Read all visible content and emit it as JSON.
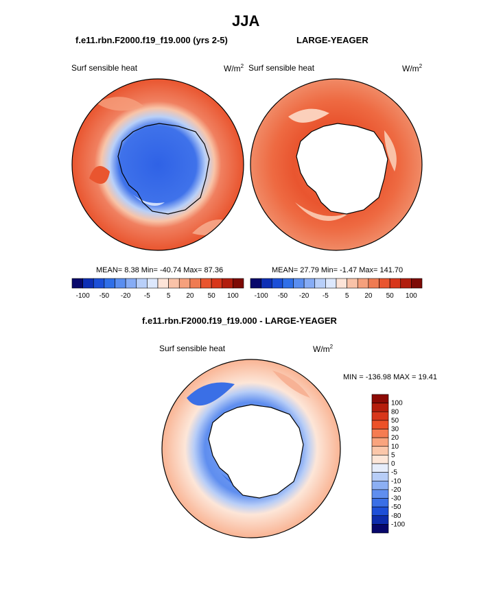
{
  "page": {
    "title": "JJA",
    "left_run": "f.e11.rbn.F2000.f19_f19.000 (yrs 2-5)",
    "right_run": "LARGE-YEAGER",
    "diff_title": "f.e11.rbn.F2000.f19_f19.000 - LARGE-YEAGER"
  },
  "colors": {
    "land": "#ffffff",
    "coast": "#000000"
  },
  "chart_data": [
    {
      "type": "heatmap",
      "projection": "south-polar-stereographic",
      "variable": "Surf sensible heat",
      "units": "W/m",
      "units_exp": "2",
      "stats": {
        "mean_label": "MEAN=",
        "mean": "8.38",
        "min_label": "Min=",
        "min": "-40.74",
        "max_label": "Max=",
        "max": "87.36"
      },
      "colorbar": {
        "orientation": "horizontal",
        "colors": [
          "#08086b",
          "#0d2fb5",
          "#1b4fd8",
          "#2f6fe8",
          "#5a8ef0",
          "#86acf5",
          "#b8cff9",
          "#dde8fd",
          "#fde4d8",
          "#f9c2a8",
          "#f5a07c",
          "#ef7b52",
          "#e9552f",
          "#d8361a",
          "#b11d0d",
          "#7d0a05"
        ],
        "tick_labels": [
          "-100",
          "-50",
          "-20",
          "-5",
          "5",
          "20",
          "50",
          "100"
        ]
      },
      "field_description": "negative values (blues) over the Antarctic continent and sea-ice zone; positive values (oranges/reds) over the open Southern Ocean"
    },
    {
      "type": "heatmap",
      "projection": "south-polar-stereographic",
      "variable": "Surf sensible heat",
      "units": "W/m",
      "units_exp": "2",
      "stats": {
        "mean_label": "MEAN=",
        "mean": "27.79",
        "min_label": "Min=",
        "min": "-1.47",
        "max_label": "Max=",
        "max": "141.70"
      },
      "colorbar": {
        "orientation": "horizontal",
        "colors": [
          "#08086b",
          "#0d2fb5",
          "#1b4fd8",
          "#2f6fe8",
          "#5a8ef0",
          "#86acf5",
          "#b8cff9",
          "#dde8fd",
          "#fde4d8",
          "#f9c2a8",
          "#f5a07c",
          "#ef7b52",
          "#e9552f",
          "#d8361a",
          "#b11d0d",
          "#7d0a05"
        ],
        "tick_labels": [
          "-100",
          "-50",
          "-20",
          "-5",
          "5",
          "20",
          "50",
          "100"
        ]
      },
      "field_description": "continent masked (white); positive values everywhere over ocean, strongest near the ice edge"
    },
    {
      "type": "heatmap",
      "projection": "south-polar-stereographic",
      "variable": "Surf sensible heat",
      "units": "W/m",
      "units_exp": "2",
      "stats": {
        "min_label": "MIN =",
        "min": "-136.98",
        "max_label": "MAX =",
        "max": "19.41"
      },
      "colorbar": {
        "orientation": "vertical",
        "levels": [
          "100",
          "80",
          "50",
          "30",
          "20",
          "10",
          "5",
          "0",
          "-5",
          "-10",
          "-20",
          "-30",
          "-50",
          "-80",
          "-100"
        ],
        "colors": [
          "#8c0a05",
          "#b51d0c",
          "#d8361a",
          "#ec5128",
          "#f57c52",
          "#f9a47e",
          "#fbc7aa",
          "#fde6d8",
          "#e6edfb",
          "#b7cdf7",
          "#8caff3",
          "#5f8eef",
          "#3a6fe6",
          "#1d4fd8",
          "#0d2cac",
          "#07076b"
        ]
      },
      "field_description": "difference field: continent masked; blue negative band along the Antarctic coast and ice zone, pale orange positive values farther north"
    }
  ]
}
